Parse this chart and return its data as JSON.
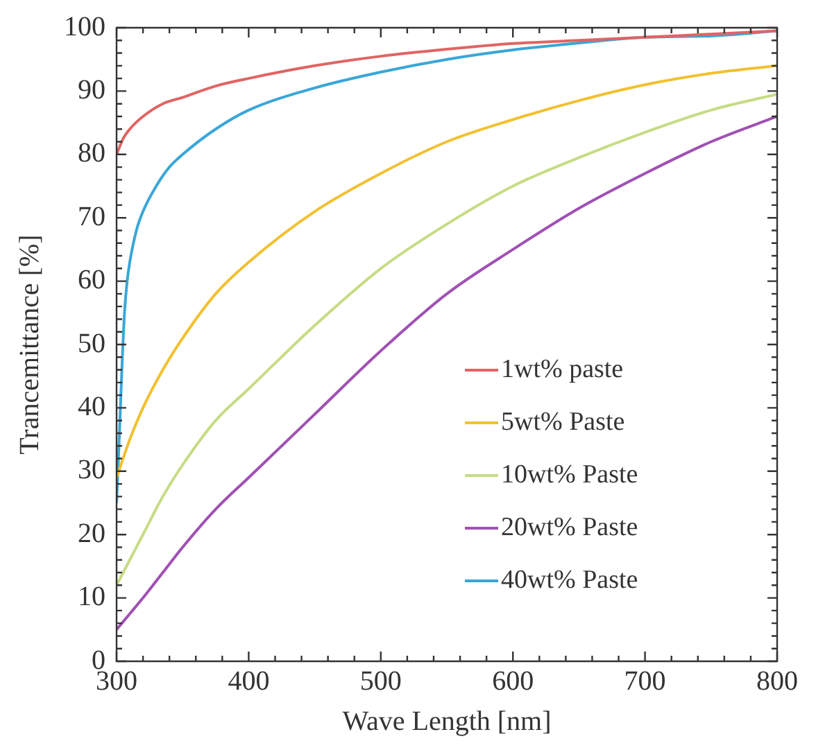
{
  "chart_data": {
    "type": "line",
    "xlabel": "Wave Length [nm]",
    "ylabel": "Trancemittance [%]",
    "xlim": [
      300,
      800
    ],
    "ylim": [
      0,
      100
    ],
    "xticks": [
      300,
      400,
      500,
      600,
      700,
      800
    ],
    "yticks": [
      0,
      10,
      20,
      30,
      40,
      50,
      60,
      70,
      80,
      90,
      100
    ],
    "grid": false,
    "legend": "right",
    "marker": "none",
    "line_style": "solid",
    "series": [
      {
        "name": "1wt% paste",
        "color": "#e06464",
        "x": [
          300,
          305,
          310,
          320,
          335,
          350,
          375,
          400,
          450,
          500,
          550,
          600,
          650,
          700,
          750,
          800
        ],
        "values": [
          80,
          82.5,
          84,
          86,
          88,
          89,
          90.8,
          92,
          94,
          95.5,
          96.6,
          97.5,
          98,
          98.5,
          99,
          99.5
        ]
      },
      {
        "name": "5wt% Paste",
        "color": "#f2c030",
        "x": [
          300,
          310,
          320,
          335,
          350,
          375,
          400,
          450,
          500,
          550,
          600,
          650,
          700,
          750,
          800
        ],
        "values": [
          29,
          35,
          40,
          46,
          51,
          58,
          63,
          71,
          77,
          82,
          85.5,
          88.5,
          91,
          92.8,
          94
        ]
      },
      {
        "name": "10wt% Paste",
        "color": "#c6dc84",
        "x": [
          300,
          310,
          320,
          335,
          350,
          375,
          400,
          450,
          500,
          550,
          600,
          650,
          700,
          750,
          800
        ],
        "values": [
          12,
          16,
          20,
          26,
          31,
          38,
          43,
          53,
          62,
          69,
          75,
          79.5,
          83.5,
          87,
          89.5
        ]
      },
      {
        "name": "20wt% Paste",
        "color": "#a050b4",
        "x": [
          300,
          310,
          320,
          335,
          350,
          375,
          400,
          450,
          500,
          550,
          600,
          650,
          700,
          750,
          800
        ],
        "values": [
          5,
          7.5,
          10,
          14,
          18,
          24,
          29,
          39,
          49,
          58,
          65,
          71.5,
          77,
          82,
          86
        ]
      },
      {
        "name": "40wt% Paste",
        "color": "#3aa6d8",
        "x": [
          300,
          302,
          304,
          306,
          308,
          310,
          315,
          320,
          330,
          340,
          350,
          375,
          400,
          450,
          500,
          550,
          600,
          650,
          700,
          750,
          800
        ],
        "values": [
          25,
          35,
          46,
          55,
          60,
          63,
          68,
          71,
          75,
          78,
          80,
          84,
          87,
          90.5,
          93,
          95,
          96.5,
          97.6,
          98.5,
          98.7,
          99.5
        ]
      }
    ]
  }
}
